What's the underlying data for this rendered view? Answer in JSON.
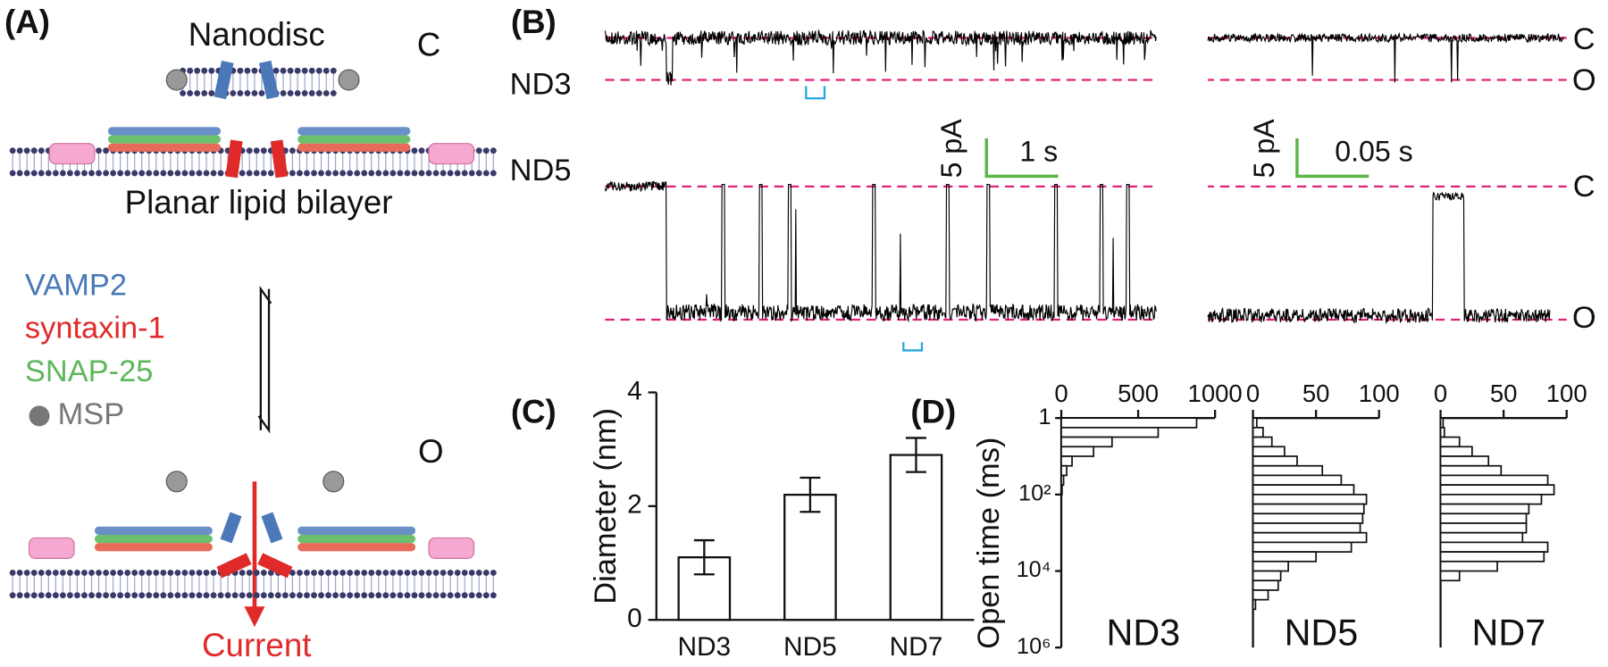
{
  "panel_a": {
    "label": "(A)",
    "top_title": "Nanodisc",
    "state_closed": "C",
    "bottom_title": "Planar lipid bilayer",
    "legend": [
      "VAMP2",
      "syntaxin-1",
      "SNAP-25",
      "MSP"
    ],
    "legend_colors": [
      "#4a78b8",
      "#e02a2a",
      "#5cb85c",
      "#777777"
    ],
    "state_open": "O",
    "current_label": "Current"
  },
  "panel_b": {
    "label": "(B)",
    "traces": [
      "ND3",
      "ND5"
    ],
    "levels": [
      "C",
      "O",
      "C",
      "O"
    ],
    "scale_bars": [
      {
        "y": "5 pA",
        "x": "1 s"
      },
      {
        "y": "5 pA",
        "x": "0.05 s"
      }
    ]
  },
  "chart_data": [
    {
      "type": "bar",
      "label": "(C)",
      "ylabel": "Diameter (nm)",
      "categories": [
        "ND3",
        "ND5",
        "ND7"
      ],
      "values": [
        1.1,
        2.2,
        2.9
      ],
      "errors": [
        0.3,
        0.3,
        0.3
      ],
      "color": "#ffffff",
      "ylim": [
        0,
        4
      ],
      "yticks": [
        0,
        2,
        4
      ]
    },
    {
      "type": "histogram",
      "label": "(D)",
      "name": "ND3",
      "ylabel": "Open time (ms)",
      "log_y": true,
      "bins": [
        1,
        1.78,
        3.16,
        5.62,
        10,
        17.8,
        31.6,
        56.2,
        100,
        178,
        316,
        562,
        1000,
        1778,
        3162,
        5623,
        10000,
        17783,
        31623,
        56234,
        100000,
        177828,
        316228,
        562341,
        1000000
      ],
      "values": [
        880,
        630,
        330,
        210,
        70,
        35,
        15,
        5,
        0,
        0,
        0,
        0,
        0,
        0,
        0,
        0,
        0,
        0,
        0,
        0,
        0,
        0,
        0,
        0
      ],
      "xlim": [
        0,
        1000
      ],
      "xticks": [
        0,
        500,
        1000
      ],
      "ylim": [
        1,
        1000000
      ],
      "yticks": [
        1,
        {
          "value": 100,
          "label": "10²"
        },
        {
          "value": 10000,
          "label": "10⁴"
        },
        {
          "value": 1000000,
          "label": "10⁶"
        }
      ]
    },
    {
      "type": "histogram",
      "name": "ND5",
      "log_y": true,
      "bins": [
        1,
        1.78,
        3.16,
        5.62,
        10,
        17.8,
        31.6,
        56.2,
        100,
        178,
        316,
        562,
        1000,
        1778,
        3162,
        5623,
        10000,
        17783,
        31623,
        56234,
        100000,
        177828,
        316228,
        562341,
        1000000
      ],
      "values": [
        3,
        8,
        15,
        25,
        35,
        55,
        70,
        80,
        90,
        88,
        87,
        85,
        90,
        78,
        50,
        28,
        22,
        20,
        12,
        2,
        0,
        0,
        0,
        0
      ],
      "xlim": [
        0,
        100
      ],
      "xticks": [
        0,
        50,
        100
      ],
      "ylim": [
        1,
        1000000
      ]
    },
    {
      "type": "histogram",
      "name": "ND7",
      "log_y": true,
      "bins": [
        1,
        1.78,
        3.16,
        5.62,
        10,
        17.8,
        31.6,
        56.2,
        100,
        178,
        316,
        562,
        1000,
        1778,
        3162,
        5623,
        10000,
        17783,
        31623,
        56234,
        100000,
        177828,
        316228,
        562341,
        1000000
      ],
      "values": [
        2,
        3,
        15,
        25,
        38,
        48,
        85,
        90,
        80,
        70,
        68,
        68,
        65,
        85,
        82,
        45,
        15,
        0,
        0,
        0,
        0,
        0,
        0,
        0
      ],
      "xlim": [
        0,
        100
      ],
      "xticks": [
        0,
        50,
        100
      ],
      "ylim": [
        1,
        1000000
      ]
    }
  ]
}
